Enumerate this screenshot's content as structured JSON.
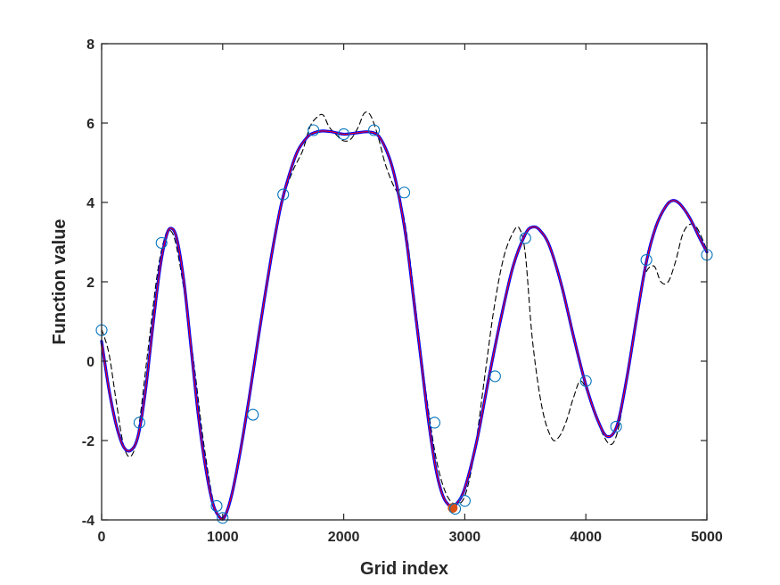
{
  "chart_data": {
    "type": "line",
    "title": "",
    "xlabel": "Grid index",
    "ylabel": "Function value",
    "xlim": [
      0,
      5000
    ],
    "ylim": [
      -4,
      8
    ],
    "xticks": [
      0,
      1000,
      2000,
      3000,
      4000,
      5000
    ],
    "yticks": [
      -4,
      -2,
      0,
      2,
      4,
      6,
      8
    ],
    "xtick_labels": [
      "0",
      "1000",
      "2000",
      "3000",
      "4000",
      "5000"
    ],
    "ytick_labels": [
      "-4",
      "-2",
      "0",
      "2",
      "4",
      "6",
      "8"
    ],
    "grid": false,
    "legend": "none",
    "series": [
      {
        "style": "solid-thick",
        "color": "#0000ff",
        "x": [
          0,
          60,
          120,
          180,
          240,
          300,
          360,
          420,
          480,
          530,
          570,
          620,
          680,
          740,
          800,
          860,
          920,
          980,
          1020,
          1080,
          1150,
          1220,
          1300,
          1400,
          1480,
          1550,
          1620,
          1700,
          1750,
          1820,
          1900,
          2000,
          2100,
          2200,
          2280,
          2340,
          2400,
          2460,
          2520,
          2580,
          2640,
          2700,
          2760,
          2820,
          2880,
          2930,
          3000,
          3100,
          3200,
          3300,
          3400,
          3500,
          3560,
          3620,
          3700,
          3800,
          3900,
          4000,
          4100,
          4180,
          4260,
          4340,
          4420,
          4500,
          4580,
          4660,
          4720,
          4780,
          4860,
          4940,
          5000
        ],
        "y": [
          0.5,
          -0.7,
          -1.6,
          -2.15,
          -2.25,
          -1.9,
          -0.8,
          0.8,
          2.3,
          3.1,
          3.35,
          3.1,
          2.0,
          0.3,
          -1.4,
          -2.7,
          -3.6,
          -3.95,
          -3.9,
          -3.3,
          -2.2,
          -0.9,
          0.7,
          2.6,
          3.9,
          4.7,
          5.3,
          5.65,
          5.75,
          5.8,
          5.78,
          5.72,
          5.75,
          5.78,
          5.7,
          5.4,
          4.9,
          4.1,
          3.0,
          1.5,
          0.0,
          -1.5,
          -2.7,
          -3.4,
          -3.65,
          -3.6,
          -3.2,
          -2.0,
          -0.4,
          1.1,
          2.4,
          3.2,
          3.38,
          3.3,
          2.9,
          1.9,
          0.6,
          -0.6,
          -1.5,
          -1.9,
          -1.6,
          -0.4,
          1.1,
          2.5,
          3.4,
          3.9,
          4.05,
          3.95,
          3.6,
          3.1,
          2.75
        ]
      },
      {
        "style": "solid-thin",
        "color": "#ff0000",
        "x": [
          0,
          60,
          120,
          180,
          240,
          300,
          360,
          420,
          480,
          530,
          570,
          620,
          680,
          740,
          800,
          860,
          920,
          980,
          1020,
          1080,
          1150,
          1220,
          1300,
          1400,
          1480,
          1550,
          1620,
          1700,
          1750,
          1820,
          1900,
          2000,
          2100,
          2200,
          2280,
          2340,
          2400,
          2460,
          2520,
          2580,
          2640,
          2700,
          2760,
          2820,
          2880,
          2930,
          3000,
          3100,
          3200,
          3300,
          3400,
          3500,
          3560,
          3620,
          3700,
          3800,
          3900,
          4000,
          4100,
          4180,
          4260,
          4340,
          4420,
          4500,
          4580,
          4660,
          4720,
          4780,
          4860,
          4940,
          5000
        ],
        "y": [
          0.5,
          -0.7,
          -1.6,
          -2.15,
          -2.25,
          -1.9,
          -0.8,
          0.8,
          2.3,
          3.1,
          3.35,
          3.1,
          2.0,
          0.3,
          -1.4,
          -2.7,
          -3.6,
          -3.95,
          -3.9,
          -3.3,
          -2.2,
          -0.9,
          0.7,
          2.6,
          3.9,
          4.7,
          5.3,
          5.65,
          5.75,
          5.8,
          5.78,
          5.72,
          5.75,
          5.78,
          5.7,
          5.4,
          4.9,
          4.1,
          3.0,
          1.5,
          0.0,
          -1.5,
          -2.7,
          -3.4,
          -3.65,
          -3.6,
          -3.2,
          -2.0,
          -0.4,
          1.1,
          2.4,
          3.2,
          3.38,
          3.3,
          2.9,
          1.9,
          0.6,
          -0.6,
          -1.5,
          -1.9,
          -1.6,
          -0.4,
          1.1,
          2.5,
          3.4,
          3.9,
          4.05,
          3.95,
          3.6,
          3.1,
          2.75
        ]
      },
      {
        "style": "dashed",
        "color": "#000000",
        "x": [
          0,
          60,
          120,
          180,
          240,
          300,
          380,
          460,
          520,
          560,
          610,
          680,
          760,
          840,
          920,
          980,
          1040,
          1100,
          1180,
          1260,
          1340,
          1420,
          1500,
          1580,
          1660,
          1720,
          1780,
          1830,
          1880,
          1940,
          2000,
          2060,
          2120,
          2170,
          2220,
          2280,
          2340,
          2400,
          2460,
          2520,
          2600,
          2680,
          2760,
          2840,
          2920,
          3000,
          3080,
          3160,
          3240,
          3320,
          3400,
          3450,
          3500,
          3560,
          3640,
          3720,
          3780,
          3840,
          3900,
          3960,
          4040,
          4120,
          4200,
          4260,
          4320,
          4400,
          4480,
          4560,
          4620,
          4680,
          4740,
          4800,
          4860,
          4920,
          5000
        ],
        "y": [
          0.8,
          0.2,
          -1.0,
          -2.1,
          -2.4,
          -1.8,
          0.2,
          2.2,
          3.1,
          3.3,
          3.0,
          1.8,
          0.0,
          -2.0,
          -3.5,
          -3.95,
          -3.7,
          -3.0,
          -1.7,
          -0.2,
          1.4,
          2.9,
          4.1,
          4.8,
          5.3,
          5.9,
          6.15,
          6.2,
          5.9,
          5.7,
          5.55,
          5.6,
          5.9,
          6.25,
          6.2,
          5.7,
          5.0,
          4.5,
          4.1,
          3.2,
          1.2,
          -0.8,
          -2.4,
          -3.3,
          -3.6,
          -3.4,
          -2.3,
          -0.5,
          1.3,
          2.6,
          3.25,
          3.35,
          2.7,
          0.5,
          -1.2,
          -1.95,
          -1.9,
          -1.5,
          -0.9,
          -0.5,
          -1.0,
          -1.7,
          -2.1,
          -1.8,
          -0.8,
          0.8,
          2.1,
          2.4,
          2.0,
          2.0,
          2.5,
          3.2,
          3.45,
          3.35,
          2.8
        ]
      }
    ],
    "markers": {
      "style": "open-circle",
      "color": "#0072bd",
      "x": [
        0,
        312,
        495,
        950,
        1000,
        1250,
        1500,
        1750,
        2000,
        2250,
        2500,
        2750,
        2920,
        3000,
        3250,
        3500,
        4000,
        4250,
        4500,
        5000
      ],
      "y": [
        0.78,
        -1.55,
        2.98,
        -3.65,
        -3.95,
        -1.35,
        4.2,
        5.82,
        5.72,
        5.82,
        4.25,
        -1.55,
        -3.72,
        -3.52,
        -0.38,
        3.1,
        -0.5,
        -1.65,
        2.55,
        2.68
      ]
    },
    "highlight_point": {
      "x": 2900,
      "y": -3.7,
      "color": "#d95319"
    }
  }
}
